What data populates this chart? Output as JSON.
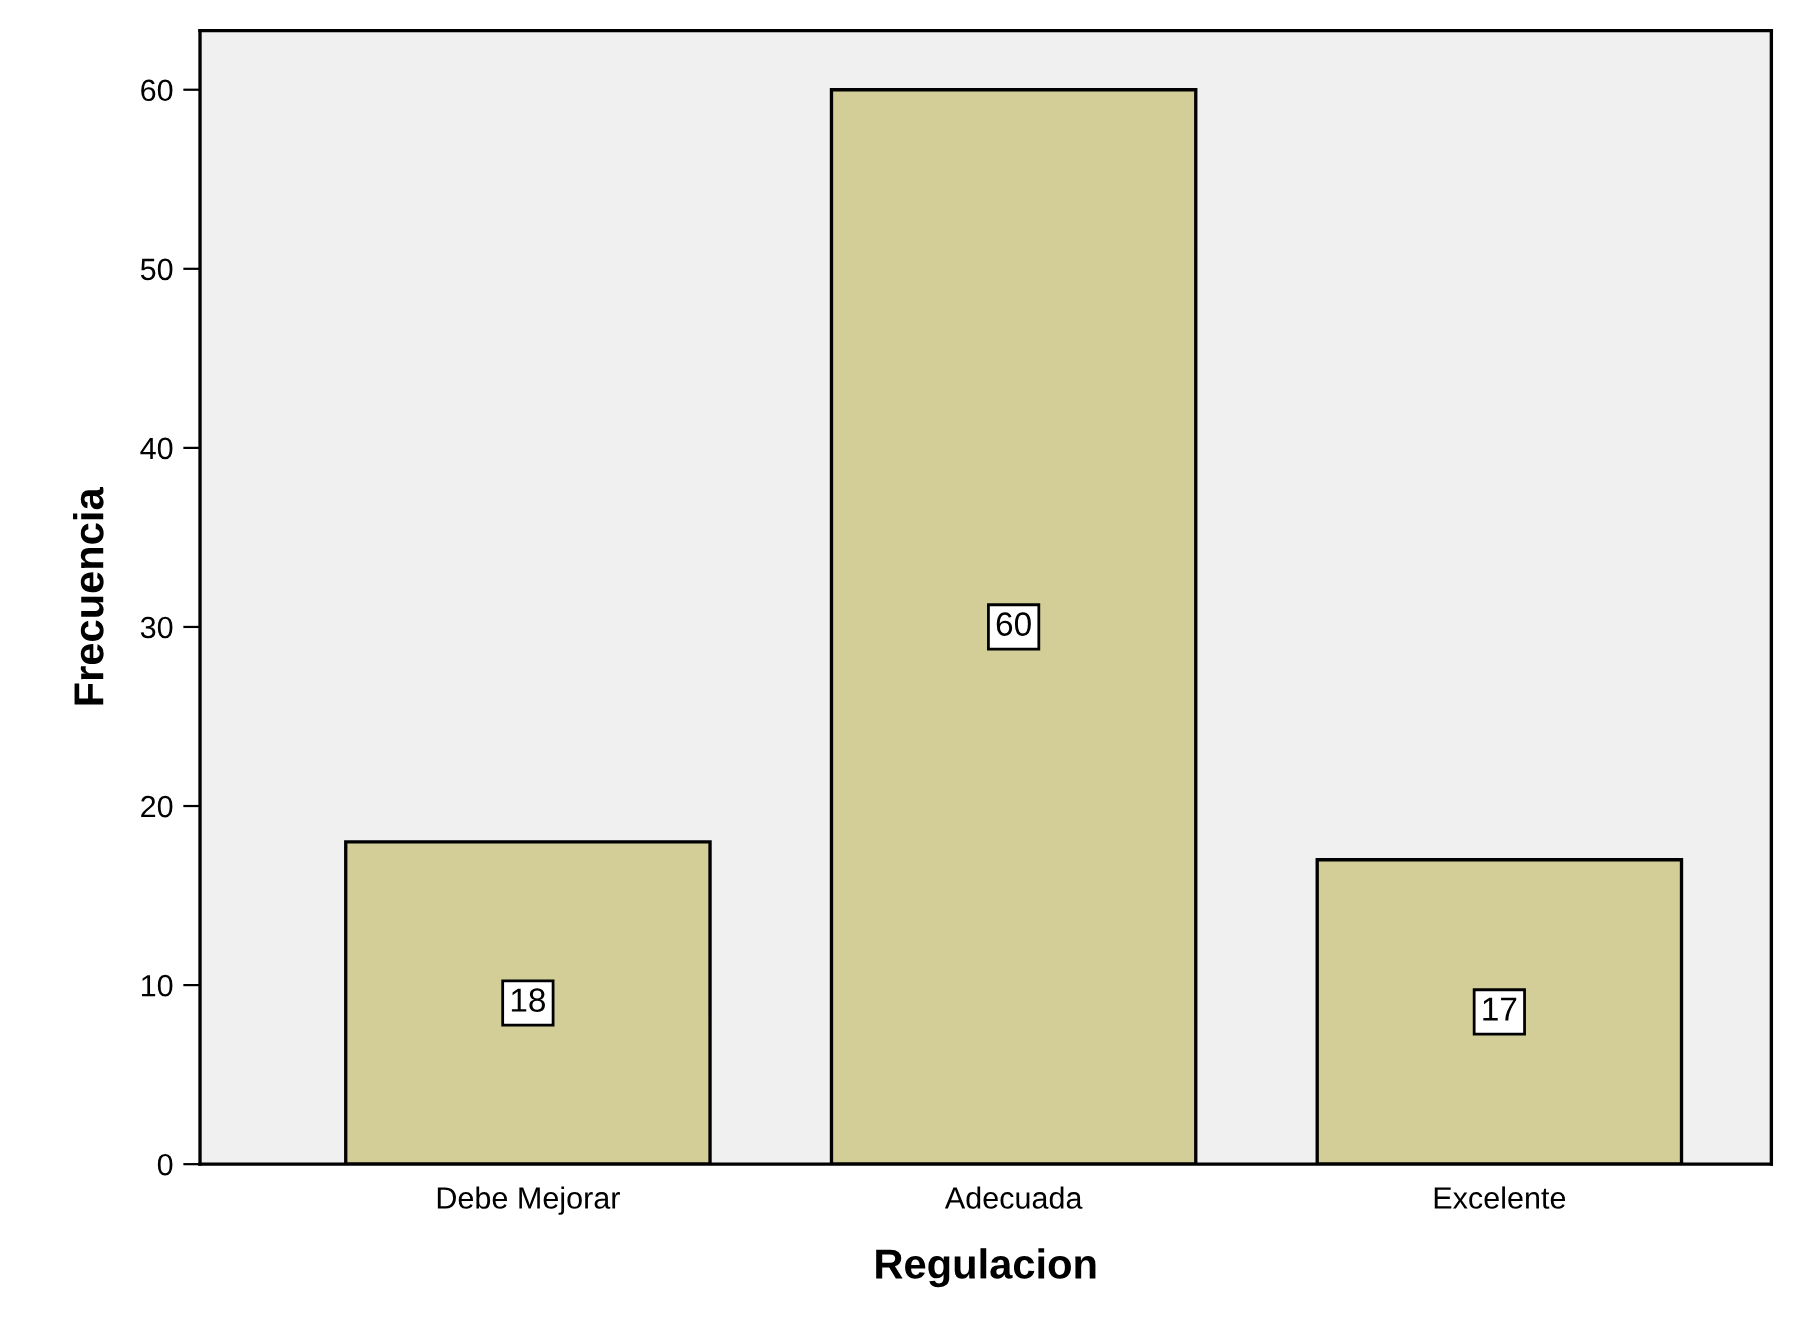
{
  "chart_data": {
    "type": "bar",
    "xlabel": "Regulacion",
    "ylabel": "Frecuencia",
    "categories": [
      "Debe Mejorar",
      "Adecuada",
      "Excelente"
    ],
    "values": [
      18,
      60,
      17
    ],
    "color": "#d3ce97",
    "ylim": [
      0,
      63.3
    ],
    "yticks": [
      0,
      10,
      20,
      30,
      40,
      50,
      60
    ],
    "data_labels": true,
    "grid": false,
    "legend": false
  }
}
